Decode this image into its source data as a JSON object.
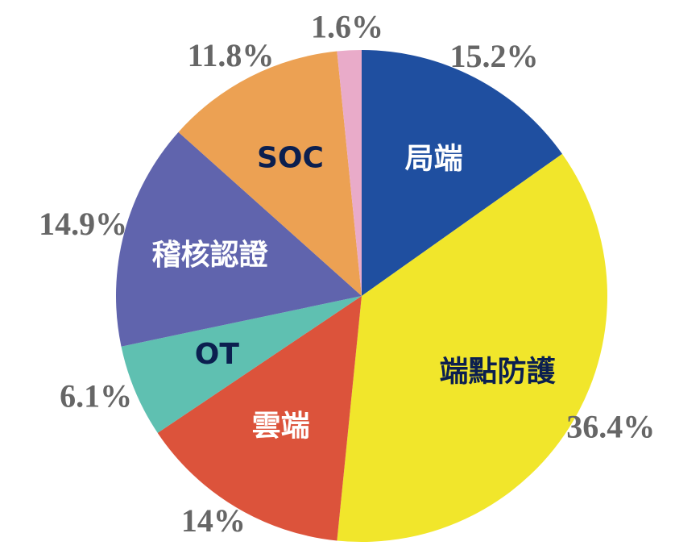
{
  "chart_data": {
    "type": "pie",
    "categories": [
      "局端",
      "端點防護",
      "雲端",
      "OT",
      "稽核認證",
      "SOC",
      null
    ],
    "values": [
      15.2,
      36.4,
      14,
      6.1,
      14.9,
      11.8,
      1.6
    ],
    "value_labels": [
      "15.2%",
      "36.4%",
      "14%",
      "6.1%",
      "14.9%",
      "11.8%",
      "1.6%"
    ],
    "colors": [
      "#1f4fa0",
      "#f1e62b",
      "#dc533b",
      "#5fc0b1",
      "#6064ad",
      "#eca153",
      "#e9abc9"
    ],
    "label_colors": [
      "#ffffff",
      "#0b1f4f",
      "#ffffff",
      "#0b1f4f",
      "#ffffff",
      "#0b1f4f",
      "#ffffff"
    ]
  }
}
